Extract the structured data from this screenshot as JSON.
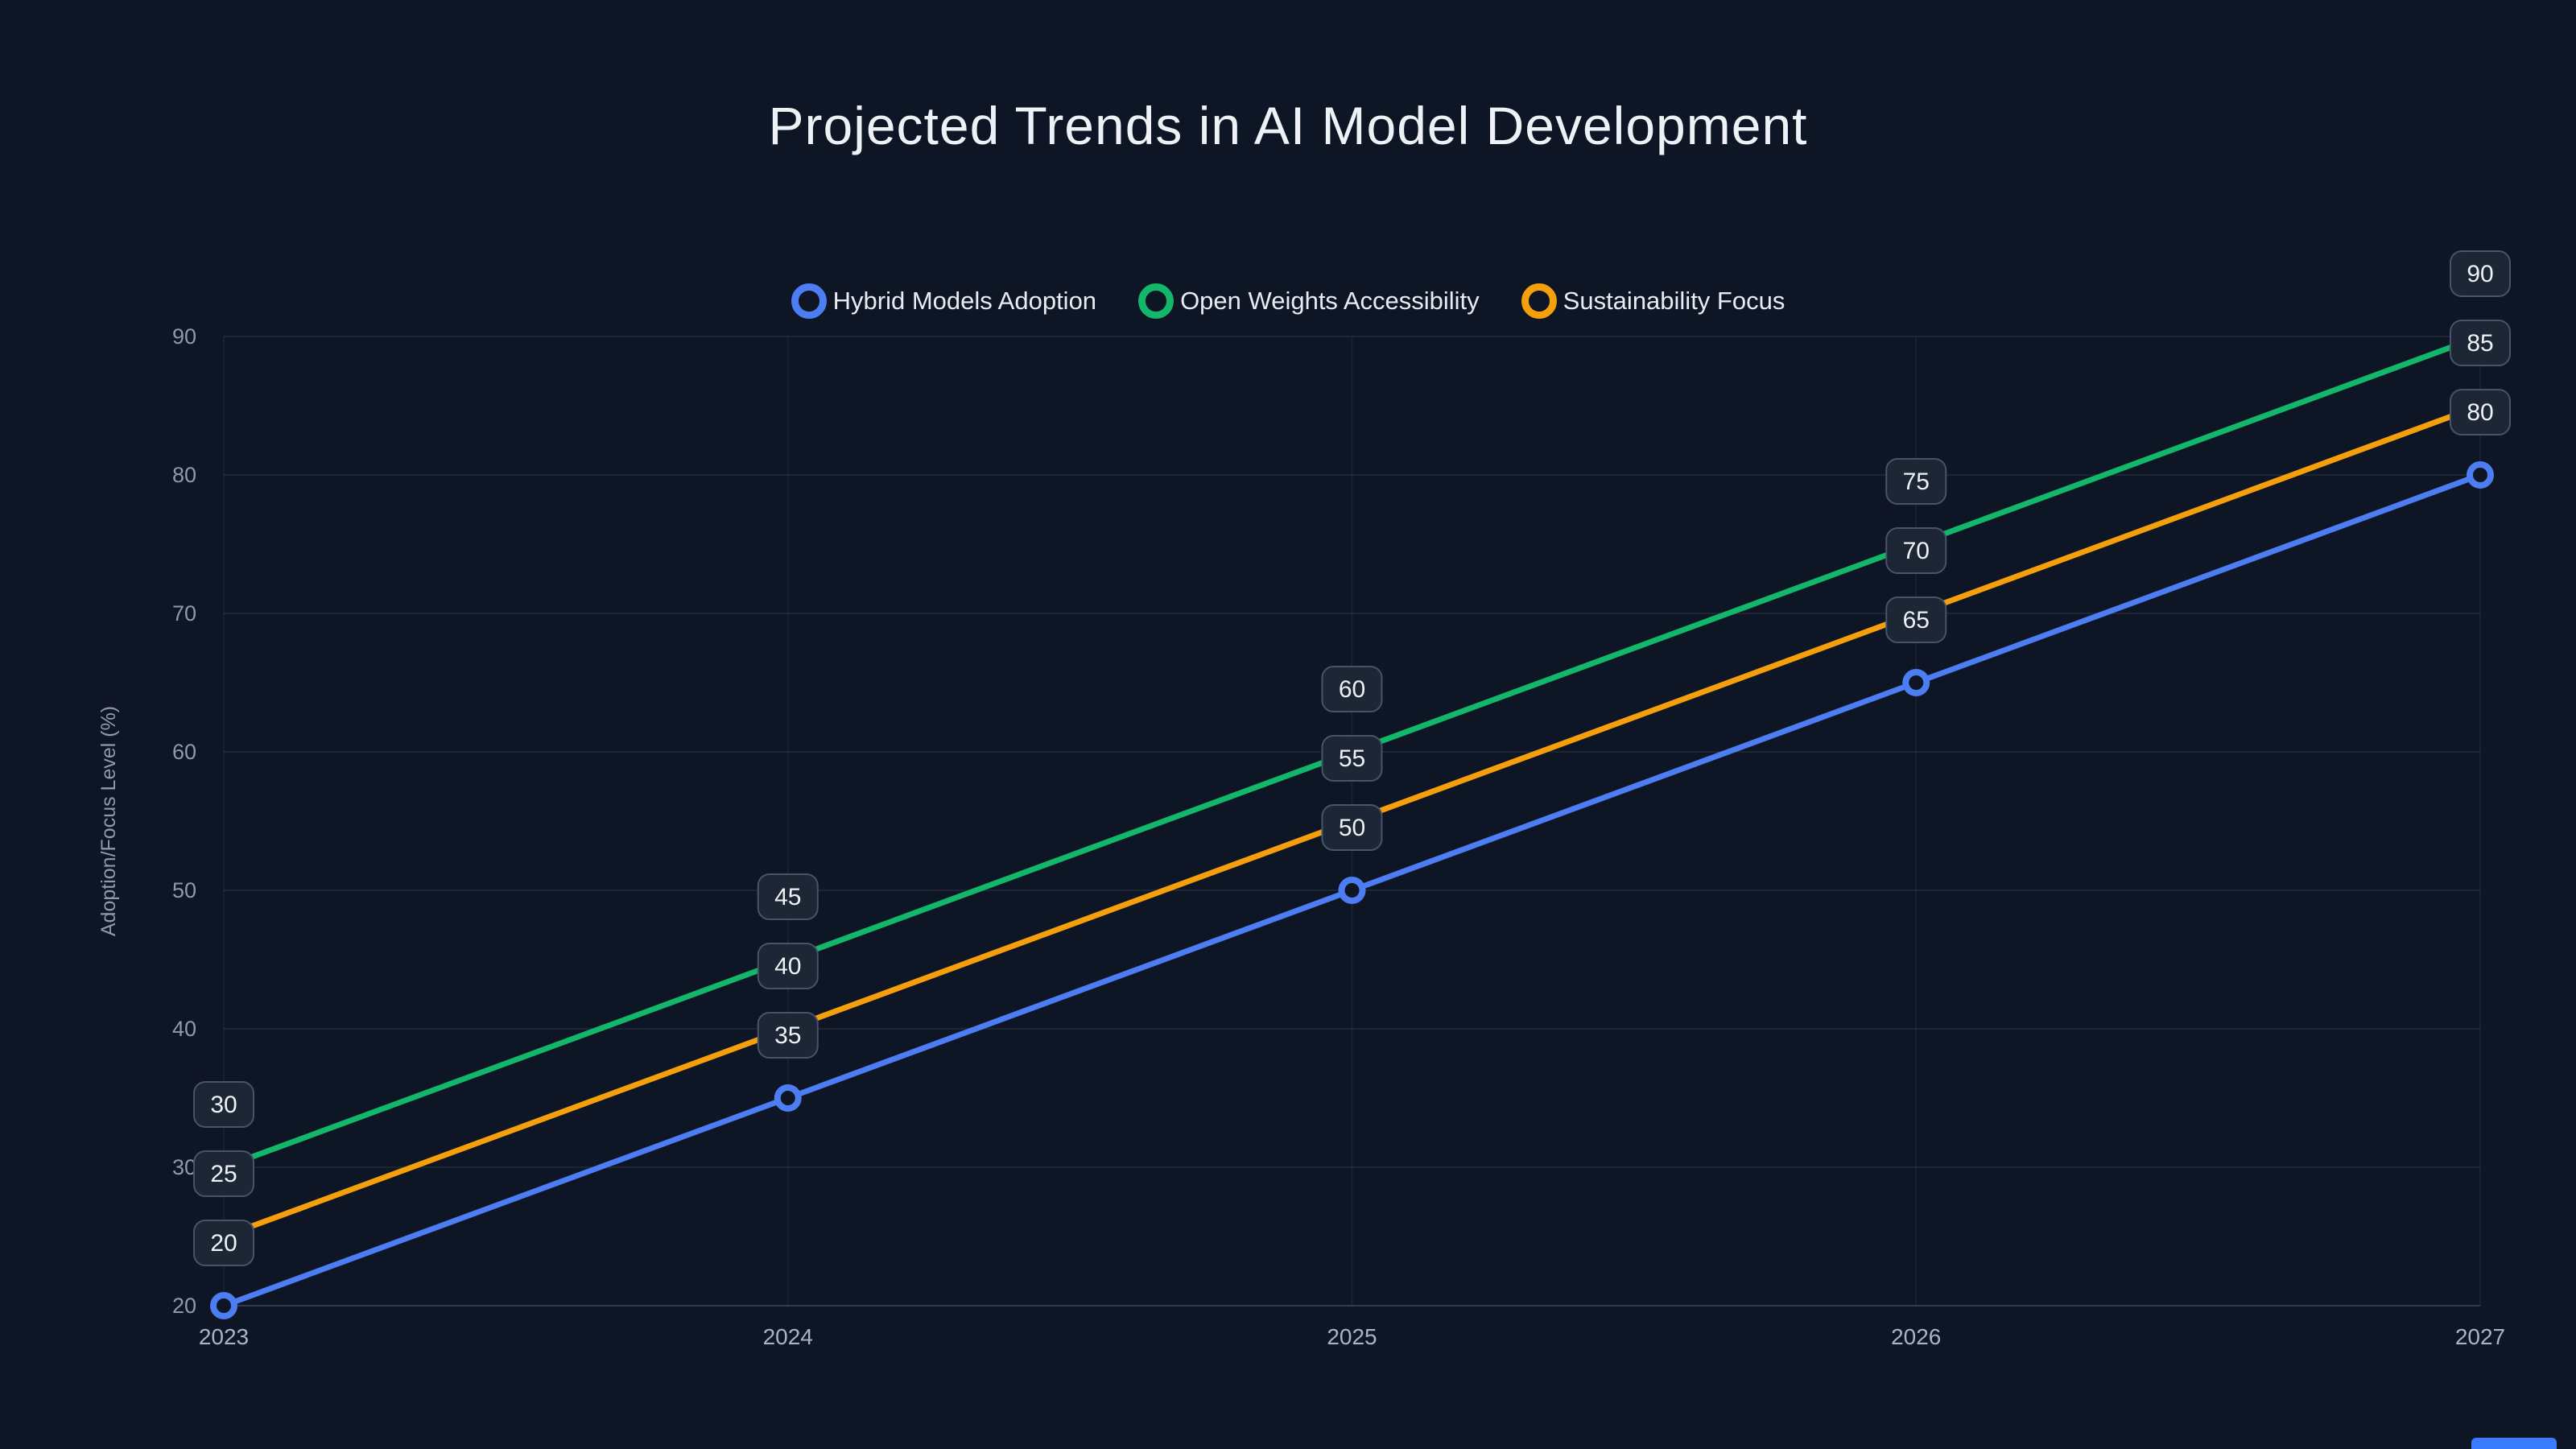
{
  "title": "Projected Trends in AI Model Development",
  "legend": [
    {
      "label": "Hybrid Models Adoption",
      "color": "#4d7df2"
    },
    {
      "label": "Open Weights Accessibility",
      "color": "#12b76a"
    },
    {
      "label": "Sustainability Focus",
      "color": "#f59f0a"
    }
  ],
  "colors": {
    "background": "#0e1626",
    "grid": "rgba(148,163,184,0.15)",
    "vertical_grid": "rgba(148,163,184,0.08)",
    "axis_line": "rgba(148,163,184,0.35)",
    "tick_text": "#8e99ab",
    "x_tick_text": "#a9b3c3",
    "label_box_fill": "#1d2635",
    "label_box_border": "#46536b",
    "label_text": "#eef1f6",
    "accent_bar": "#3b7cff"
  },
  "chart_data": {
    "type": "line",
    "title": "Projected Trends in AI Model Development",
    "x": [
      "2023",
      "2024",
      "2025",
      "2026",
      "2027"
    ],
    "series": [
      {
        "name": "Hybrid Models Adoption",
        "color": "#4d7df2",
        "values": [
          20,
          35,
          50,
          65,
          80
        ],
        "marker": true
      },
      {
        "name": "Open Weights Accessibility",
        "color": "#12b76a",
        "values": [
          30,
          45,
          60,
          75,
          90
        ],
        "marker": false
      },
      {
        "name": "Sustainability Focus",
        "color": "#f59f0a",
        "values": [
          25,
          40,
          55,
          70,
          85
        ],
        "marker": false
      }
    ],
    "xlabel": "",
    "ylabel": "Adoption/Focus Level (%)",
    "ylim": [
      20,
      90
    ],
    "yticks": [
      20,
      30,
      40,
      50,
      60,
      70,
      80,
      90
    ],
    "grid": true,
    "data_labels": true,
    "legend_position": "top"
  }
}
